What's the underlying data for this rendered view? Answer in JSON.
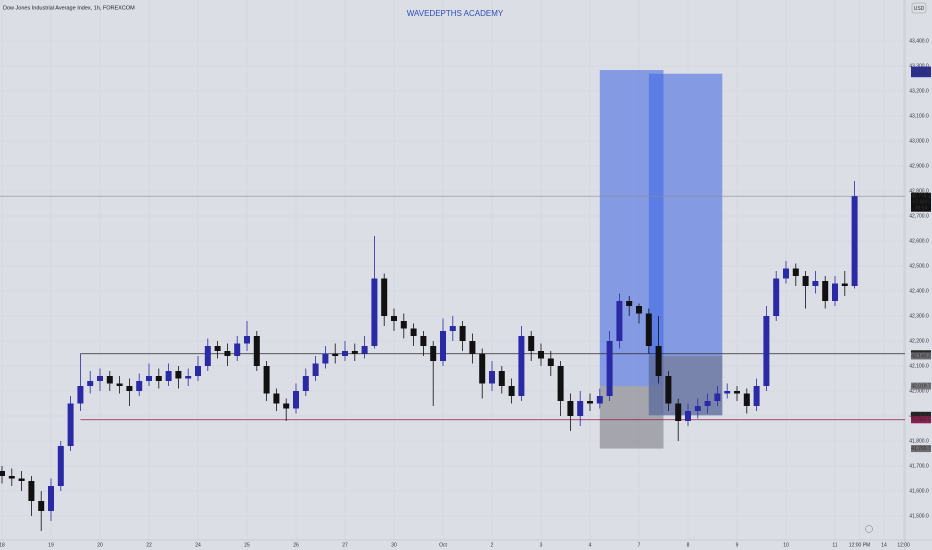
{
  "chart_data": {
    "type": "candlestick",
    "title": "Dow Jones Industrial Average Index, 1h, FOREXCOM",
    "watermark": "WAVEDEPTHS    ACADEMY",
    "currency": "USD",
    "up_color": "#2b2aa6",
    "down_color": "#111111",
    "ylim": [
      41404,
      43564
    ],
    "yticks": [
      {
        "value": 41500,
        "label": "41,500.0"
      },
      {
        "value": 41600,
        "label": "41,600.0"
      },
      {
        "value": 41700,
        "label": "41,700.0"
      },
      {
        "value": 41800,
        "label": "41,800.0"
      },
      {
        "value": 41900,
        "label": "41,900.0"
      },
      {
        "value": 42000,
        "label": "42,000.0"
      },
      {
        "value": 42100,
        "label": "42,100.0"
      },
      {
        "value": 42200,
        "label": "42,200.0"
      },
      {
        "value": 42300,
        "label": "42,300.0"
      },
      {
        "value": 42400,
        "label": "42,400.0"
      },
      {
        "value": 42500,
        "label": "42,500.0"
      },
      {
        "value": 42600,
        "label": "42,600.0"
      },
      {
        "value": 42700,
        "label": "42,700.0"
      },
      {
        "value": 42800,
        "label": "42,800.0"
      },
      {
        "value": 42900,
        "label": "42,900.0"
      },
      {
        "value": 43000,
        "label": "43,000.0"
      },
      {
        "value": 43100,
        "label": "43,100.0"
      },
      {
        "value": 43200,
        "label": "43,200.0"
      },
      {
        "value": 43300,
        "label": "43,300.0"
      },
      {
        "value": 43400,
        "label": "43,400.0"
      }
    ],
    "xticks": [
      {
        "value": 0,
        "label": "18"
      },
      {
        "value": 5,
        "label": "19"
      },
      {
        "value": 10,
        "label": "20"
      },
      {
        "value": 15,
        "label": "22"
      },
      {
        "value": 20,
        "label": "24"
      },
      {
        "value": 25,
        "label": "25"
      },
      {
        "value": 30,
        "label": "26"
      },
      {
        "value": 35,
        "label": "27"
      },
      {
        "value": 40,
        "label": "30"
      },
      {
        "value": 45,
        "label": "Oct"
      },
      {
        "value": 50,
        "label": "2"
      },
      {
        "value": 55,
        "label": "3"
      },
      {
        "value": 60,
        "label": "4"
      },
      {
        "value": 65,
        "label": "7"
      },
      {
        "value": 70,
        "label": "8"
      },
      {
        "value": 75,
        "label": "9"
      },
      {
        "value": 80,
        "label": "10"
      },
      {
        "value": 85,
        "label": "11"
      },
      {
        "value": 87.5,
        "label": "12:00 PM"
      },
      {
        "value": 90,
        "label": "14"
      },
      {
        "value": 92,
        "label": "12:00"
      }
    ],
    "open": [
      41680,
      41660,
      41650,
      41640,
      41560,
      41520,
      41620,
      41780,
      41950,
      42020,
      42040,
      42060,
      42030,
      42020,
      42000,
      42040,
      42060,
      42040,
      42080,
      42050,
      42060,
      42100,
      42180,
      42160,
      42140,
      42190,
      42220,
      42100,
      41990,
      41950,
      41930,
      42000,
      42060,
      42110,
      42150,
      42140,
      42160,
      42150,
      42180,
      42450,
      42300,
      42280,
      42250,
      42220,
      42180,
      42120,
      42240,
      42260,
      42200,
      42150,
      42030,
      42080,
      42020,
      41980,
      42220,
      42160,
      42130,
      42100,
      41960,
      41900,
      41960,
      41950,
      41980,
      42200,
      42360,
      42340,
      42310,
      42180,
      42060,
      41950,
      41880,
      41920,
      41940,
      41960,
      41990,
      42000,
      41990,
      41940,
      42020,
      42300,
      42450,
      42490,
      42460,
      42420,
      42440,
      42360,
      42430,
      42420
    ],
    "high": [
      41700,
      41690,
      41680,
      41660,
      41600,
      41650,
      41800,
      41980,
      42150,
      42080,
      42090,
      42080,
      42060,
      42050,
      42070,
      42110,
      42090,
      42110,
      42100,
      42090,
      42140,
      42210,
      42200,
      42190,
      42220,
      42280,
      42240,
      42120,
      42010,
      41970,
      42030,
      42090,
      42140,
      42180,
      42190,
      42200,
      42190,
      42220,
      42620,
      42470,
      42330,
      42310,
      42270,
      42240,
      42200,
      42290,
      42300,
      42280,
      42230,
      42170,
      42120,
      42100,
      42050,
      42260,
      42240,
      42190,
      42160,
      42120,
      41990,
      42000,
      41990,
      42010,
      42240,
      42390,
      42380,
      42350,
      42330,
      42300,
      42080,
      41970,
      41950,
      41970,
      41990,
      42020,
      42030,
      42020,
      42010,
      42050,
      42340,
      42480,
      42520,
      42510,
      42480,
      42480,
      42460,
      42460,
      42480,
      42840
    ],
    "low": [
      41630,
      41620,
      41600,
      41500,
      41440,
      41480,
      41600,
      41760,
      41920,
      41990,
      42000,
      42000,
      41990,
      41940,
      41980,
      42020,
      42010,
      42020,
      42010,
      42020,
      42040,
      42080,
      42130,
      42100,
      42120,
      42160,
      42080,
      41960,
      41920,
      41880,
      41910,
      41980,
      42040,
      42090,
      42110,
      42120,
      42120,
      42130,
      42170,
      42260,
      42240,
      42210,
      42180,
      42140,
      41940,
      42100,
      42200,
      42160,
      42110,
      41970,
      42000,
      41990,
      41950,
      41960,
      42120,
      42100,
      42060,
      41900,
      41840,
      41860,
      41920,
      41930,
      41960,
      42170,
      42300,
      42270,
      42150,
      42030,
      41920,
      41800,
      41860,
      41890,
      41910,
      41940,
      41970,
      41960,
      41910,
      41920,
      42000,
      42280,
      42430,
      42420,
      42330,
      42390,
      42330,
      42340,
      42380,
      42410
    ],
    "close": [
      41660,
      41650,
      41640,
      41560,
      41520,
      41620,
      41780,
      41950,
      42020,
      42040,
      42060,
      42030,
      42020,
      42000,
      42040,
      42060,
      42040,
      42080,
      42050,
      42060,
      42100,
      42180,
      42160,
      42140,
      42190,
      42220,
      42100,
      41990,
      41950,
      41930,
      42000,
      42060,
      42110,
      42150,
      42140,
      42160,
      42150,
      42180,
      42450,
      42300,
      42280,
      42250,
      42220,
      42180,
      42120,
      42240,
      42260,
      42200,
      42150,
      42030,
      42080,
      42020,
      41980,
      42220,
      42160,
      42130,
      42100,
      41960,
      41900,
      41960,
      41950,
      41980,
      42200,
      42360,
      42340,
      42310,
      42180,
      42060,
      41950,
      41880,
      41920,
      41940,
      41960,
      41990,
      42000,
      41990,
      41940,
      42020,
      42300,
      42450,
      42490,
      42460,
      42420,
      42440,
      42360,
      42430,
      42420,
      42779.2
    ],
    "positions": [
      {
        "start": 61,
        "end": 67.5,
        "entry": 42019.7,
        "target": 43283.9,
        "stop": 41769.7
      },
      {
        "start": 66,
        "end": 73.5,
        "entry": 41902.9,
        "target": 43269.2,
        "stop": 42140.2
      }
    ],
    "levels": [
      {
        "value": 42779.2,
        "color": "#8a8d96",
        "start": -1
      },
      {
        "value": 42148.9,
        "color": "#2a2a2a",
        "start": 8
      },
      {
        "value": 41884.9,
        "color": "#8c1d4e",
        "start": 8
      }
    ],
    "price_labels": [
      {
        "value": 43283.9,
        "label": "43,283.9",
        "bg": "#2a2f9e"
      },
      {
        "value": 43269.2,
        "label": "43,269.2",
        "bg": "#2a2f9e"
      },
      {
        "value": 42779.2,
        "label": "42,779.2",
        "bg": "#111111",
        "lines": [
          "+2.66%",
          "30:54"
        ]
      },
      {
        "value": 42148.9,
        "label": "42,148.9",
        "bg": "#222222"
      },
      {
        "value": 42140.2,
        "label": "42,140.2",
        "bg": "#6c6c70"
      },
      {
        "value": 42019.7,
        "label": "42,019.7",
        "bg": "#7a7a7e"
      },
      {
        "value": 41902.9,
        "label": "41,902.9",
        "bg": "#222222"
      },
      {
        "value": 41884.9,
        "label": "41,884.9",
        "bg": "#8c1d4e"
      },
      {
        "value": 41769.7,
        "label": "41,769.7",
        "bg": "#6c6c70"
      }
    ]
  }
}
